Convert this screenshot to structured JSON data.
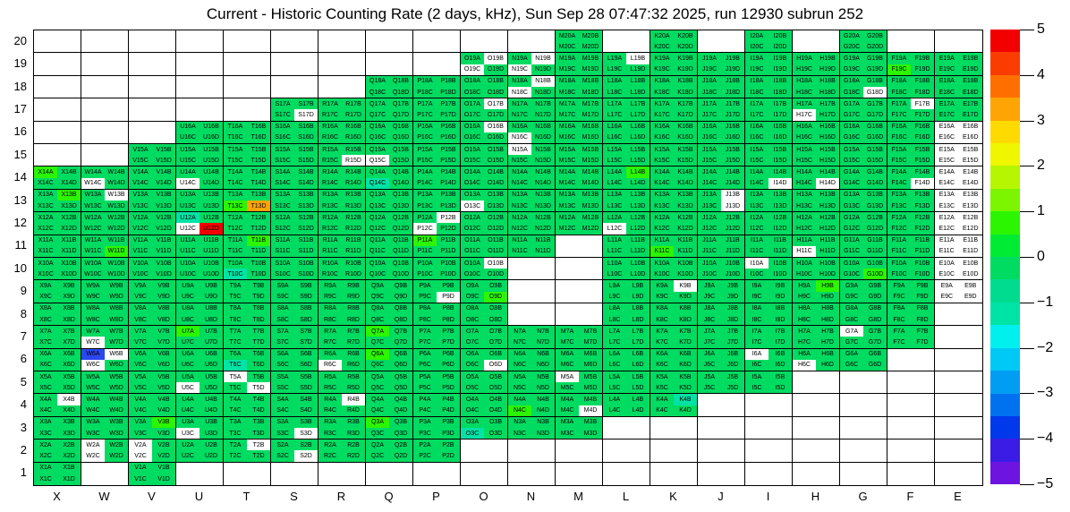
{
  "title": "Current - Historic Counting Rate (2 days, kHz), Sun Sep 28 07:47:32 2025, run 12930 subrun 252",
  "chart_data": {
    "type": "heatmap",
    "x_categories": [
      "X",
      "W",
      "V",
      "U",
      "T",
      "S",
      "R",
      "Q",
      "P",
      "O",
      "N",
      "M",
      "L",
      "K",
      "J",
      "I",
      "H",
      "G",
      "F",
      "E"
    ],
    "y_categories": [
      20,
      19,
      18,
      17,
      16,
      15,
      14,
      13,
      12,
      11,
      10,
      9,
      8,
      7,
      6,
      5,
      4,
      3,
      2,
      1
    ],
    "module_suffixes": [
      "A",
      "B",
      "C",
      "D"
    ],
    "colorbar": {
      "min": -5,
      "max": 5,
      "tick_labels": [
        "5",
        "4",
        "3",
        "2",
        "1",
        "0",
        "−1",
        "−2",
        "−3",
        "−4",
        "−5"
      ],
      "band_colors_top_to_bottom": [
        "#F20000",
        "#FB3C00",
        "#FF6F00",
        "#FFA405",
        "#FFDA00",
        "#EFF600",
        "#B6F600",
        "#7BF600",
        "#2CF500",
        "#00EC33",
        "#00DB61",
        "#00DC8F",
        "#00E3A6",
        "#00EFEF",
        "#00C9F6",
        "#009DF3",
        "#0072EF",
        "#0039EC",
        "#3A1CE5",
        "#6D14E1"
      ]
    },
    "value_colors": {
      "g": "#00DB61",
      "bg": "#2CF500",
      "t": "#00E3A6",
      "o": "#FFA405",
      "r": "#F20000",
      "b": "#2B47EF",
      "w": "#FFFFFF"
    },
    "approx_values": {
      "g": 0,
      "bg": 0.8,
      "t": -1.2,
      "o": 3.7,
      "r": 4.8,
      "b": -3.3,
      "w": null
    },
    "default_color": "g",
    "cells_by_column": {
      "X": [
        14,
        13,
        12,
        11,
        10,
        9,
        8,
        7,
        6,
        5,
        4,
        3,
        2,
        1
      ],
      "W": [
        14,
        13,
        12,
        11,
        10,
        9,
        8,
        7,
        6,
        5,
        4,
        3,
        2
      ],
      "V": [
        15,
        14,
        13,
        12,
        11,
        10,
        9,
        8,
        7,
        6,
        5,
        4,
        3,
        2,
        1
      ],
      "U": [
        16,
        15,
        14,
        13,
        12,
        11,
        10,
        9,
        8,
        7,
        6,
        5,
        4,
        3,
        2
      ],
      "T": [
        16,
        15,
        14,
        13,
        12,
        11,
        10,
        9,
        8,
        7,
        6,
        5,
        4,
        3,
        2
      ],
      "S": [
        17,
        16,
        15,
        14,
        13,
        12,
        11,
        10,
        9,
        8,
        7,
        6,
        5,
        4,
        3,
        2
      ],
      "R": [
        17,
        16,
        15,
        14,
        13,
        12,
        11,
        10,
        9,
        8,
        7,
        6,
        5,
        4,
        3,
        2
      ],
      "Q": [
        18,
        17,
        16,
        15,
        14,
        13,
        12,
        11,
        10,
        9,
        8,
        7,
        6,
        5,
        4,
        3,
        2
      ],
      "P": [
        18,
        17,
        16,
        15,
        14,
        13,
        12,
        11,
        10,
        9,
        8,
        7,
        6,
        5,
        4,
        3,
        2
      ],
      "O": [
        19,
        18,
        17,
        16,
        15,
        14,
        13,
        12,
        11,
        10,
        9,
        8,
        7,
        6,
        5,
        4,
        3
      ],
      "N": [
        19,
        18,
        17,
        16,
        15,
        14,
        13,
        12,
        11,
        7,
        6,
        5,
        4,
        3
      ],
      "M": [
        20,
        19,
        18,
        17,
        16,
        15,
        14,
        13,
        12,
        7,
        6,
        5,
        4,
        3
      ],
      "L": [
        19,
        18,
        17,
        16,
        15,
        14,
        13,
        12,
        11,
        10,
        9,
        8,
        7,
        6,
        5,
        4
      ],
      "K": [
        20,
        19,
        18,
        17,
        16,
        15,
        14,
        13,
        12,
        11,
        10,
        9,
        8,
        7,
        6,
        5,
        4
      ],
      "J": [
        19,
        18,
        17,
        16,
        15,
        14,
        13,
        12,
        11,
        10,
        9,
        8,
        7,
        6,
        5
      ],
      "I": [
        20,
        19,
        18,
        17,
        16,
        15,
        14,
        13,
        12,
        11,
        10,
        9,
        8,
        7,
        6,
        5
      ],
      "H": [
        19,
        18,
        17,
        16,
        15,
        14,
        13,
        12,
        11,
        10,
        9,
        8,
        7,
        6
      ],
      "G": [
        20,
        19,
        18,
        17,
        16,
        15,
        14,
        13,
        12,
        11,
        10,
        9,
        8,
        7,
        6
      ],
      "F": [
        19,
        18,
        17,
        16,
        15,
        14,
        13,
        12,
        11,
        10,
        9,
        8,
        7
      ],
      "E": [
        19,
        18,
        17,
        16,
        15,
        14,
        13,
        12,
        11,
        10,
        9
      ]
    },
    "overrides": {
      "X14": "bg g g g",
      "X13": "g bg g g",
      "X4": "g w g g",
      "W14": "g g w g",
      "W13": "g w g g",
      "W11": "g g g bg",
      "W7": "g g w g",
      "W6": "b w w g",
      "W2": "w g w g",
      "V3": "g bg g g",
      "V2": "w g w g",
      "U14": "g g w g",
      "U12": "t g w r",
      "U7": "bg g g g",
      "U5": "g g w g",
      "U3": "g g w g",
      "T13": "g g bg o",
      "T11": "g bg g g",
      "T10": "g g t g",
      "T6": "g g t g",
      "T5": "w g g w",
      "T2": "g w g g",
      "S17": "g g g w",
      "S3": "g g g w",
      "S2": "g g g w",
      "R15": "g g g w",
      "R6": "g g w g",
      "R4": "g w g g",
      "Q15": "g g w g",
      "Q14": "g g t g",
      "Q7": "bg g g g",
      "Q6": "bg g g g",
      "Q3": "bg g g g",
      "P12": "g w w g",
      "P11": "bg g g g",
      "P9": "g g g w",
      "O19": "g w w g",
      "O17": "g w g g",
      "O16": "g w g g",
      "O13": "g g w g",
      "O10": "g w g g",
      "O9": "g g g bg",
      "O6": "g g g w",
      "O3": "g g t g",
      "N19": "g w w g",
      "N18": "g w w g",
      "N16": "g g w g",
      "N15": "w g g g",
      "N4": "g g bg g",
      "M5": "w g g g",
      "M4": "g g g w",
      "L19": "g w g g",
      "L14": "g bg g g",
      "L12": "g g w g",
      "K11": "g g bg g",
      "K9": "g w g g",
      "K4": "g t g g",
      "J13": "g w g w",
      "I14": "g g g w",
      "I10": "w g g g",
      "I6": "w g g g",
      "H17": "g g w g",
      "H14": "g g g w",
      "H11": "g g w g",
      "H9": "g bg g g",
      "H6": "g g w g",
      "G18": "g g g w",
      "G10": "g g g bg",
      "G7": "w g g g",
      "F19": "g g bg g",
      "F17": "g w g g",
      "F14": "g g g w",
      "E16": "w w w w",
      "E15": "w w w w",
      "E14": "w w w w",
      "E13": "w w w w",
      "E12": "w w w w",
      "E11": "w w w w",
      "E10": "w w w w",
      "E9": "w w w w"
    }
  }
}
